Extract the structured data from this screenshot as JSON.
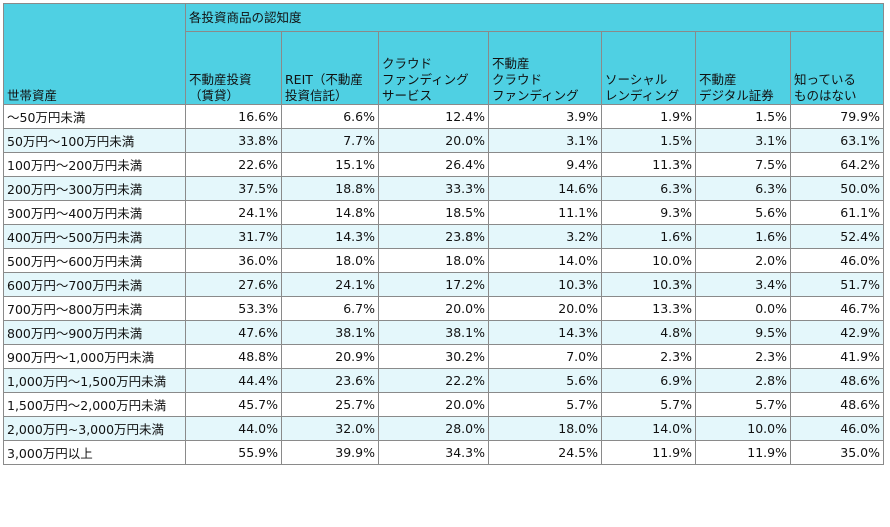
{
  "chart_data": {
    "type": "table",
    "group_header": "各投資商品の認知度",
    "row_header": "世帯資産",
    "columns": [
      [
        "不動産投資",
        "（賃貸）"
      ],
      [
        "REIT（不動産",
        "投資信託）"
      ],
      [
        "クラウド",
        "ファンディング",
        "サービス"
      ],
      [
        "不動産",
        "クラウド",
        "ファンディング"
      ],
      [
        "ソーシャル",
        "レンディング"
      ],
      [
        "不動産",
        "デジタル証券"
      ],
      [
        "知っている",
        "ものはない"
      ]
    ],
    "rows": [
      {
        "label": "～50万円未満",
        "values": [
          "16.6%",
          "6.6%",
          "12.4%",
          "3.9%",
          "1.9%",
          "1.5%",
          "79.9%"
        ]
      },
      {
        "label": "50万円～100万円未満",
        "values": [
          "33.8%",
          "7.7%",
          "20.0%",
          "3.1%",
          "1.5%",
          "3.1%",
          "63.1%"
        ]
      },
      {
        "label": "100万円～200万円未満",
        "values": [
          "22.6%",
          "15.1%",
          "26.4%",
          "9.4%",
          "11.3%",
          "7.5%",
          "64.2%"
        ]
      },
      {
        "label": "200万円～300万円未満",
        "values": [
          "37.5%",
          "18.8%",
          "33.3%",
          "14.6%",
          "6.3%",
          "6.3%",
          "50.0%"
        ]
      },
      {
        "label": "300万円～400万円未満",
        "values": [
          "24.1%",
          "14.8%",
          "18.5%",
          "11.1%",
          "9.3%",
          "5.6%",
          "61.1%"
        ]
      },
      {
        "label": "400万円～500万円未満",
        "values": [
          "31.7%",
          "14.3%",
          "23.8%",
          "3.2%",
          "1.6%",
          "1.6%",
          "52.4%"
        ]
      },
      {
        "label": "500万円～600万円未満",
        "values": [
          "36.0%",
          "18.0%",
          "18.0%",
          "14.0%",
          "10.0%",
          "2.0%",
          "46.0%"
        ]
      },
      {
        "label": "600万円～700万円未満",
        "values": [
          "27.6%",
          "24.1%",
          "17.2%",
          "10.3%",
          "10.3%",
          "3.4%",
          "51.7%"
        ]
      },
      {
        "label": "700万円～800万円未満",
        "values": [
          "53.3%",
          "6.7%",
          "20.0%",
          "20.0%",
          "13.3%",
          "0.0%",
          "46.7%"
        ]
      },
      {
        "label": "800万円～900万円未満",
        "values": [
          "47.6%",
          "38.1%",
          "38.1%",
          "14.3%",
          "4.8%",
          "9.5%",
          "42.9%"
        ]
      },
      {
        "label": "900万円～1,000万円未満",
        "values": [
          "48.8%",
          "20.9%",
          "30.2%",
          "7.0%",
          "2.3%",
          "2.3%",
          "41.9%"
        ]
      },
      {
        "label": "1,000万円～1,500万円未満",
        "values": [
          "44.4%",
          "23.6%",
          "22.2%",
          "5.6%",
          "6.9%",
          "2.8%",
          "48.6%"
        ]
      },
      {
        "label": "1,500万円～2,000万円未満",
        "values": [
          "45.7%",
          "25.7%",
          "20.0%",
          "5.7%",
          "5.7%",
          "5.7%",
          "48.6%"
        ]
      },
      {
        "label": "2,000万円~3,000万円未満",
        "values": [
          "44.0%",
          "32.0%",
          "28.0%",
          "18.0%",
          "14.0%",
          "10.0%",
          "46.0%"
        ]
      },
      {
        "label": "3,000万円以上",
        "values": [
          "55.9%",
          "39.9%",
          "34.3%",
          "24.5%",
          "11.9%",
          "11.9%",
          "35.0%"
        ]
      }
    ],
    "colors": {
      "header": "#4fd0e3",
      "band": "#e4f7fb",
      "border": "#8a8a8a"
    }
  }
}
